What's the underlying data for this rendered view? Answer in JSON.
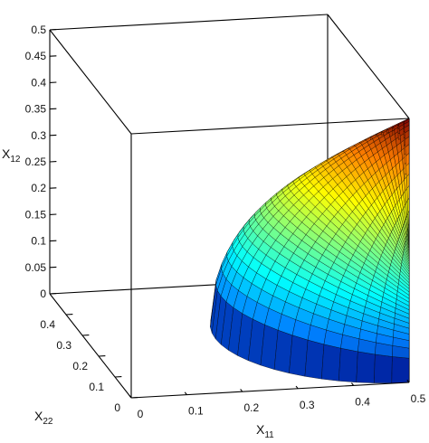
{
  "chart_data": {
    "type": "surface3d",
    "title": "",
    "axes": {
      "x": {
        "label": "X",
        "label_sub": "11",
        "ticks": [
          "0",
          "0.1",
          "0.2",
          "0.3",
          "0.4",
          "0.5"
        ],
        "range": [
          0,
          0.5
        ]
      },
      "y": {
        "label": "X",
        "label_sub": "22",
        "ticks": [
          "0",
          "0.1",
          "0.2",
          "0.3",
          "0.4"
        ],
        "range": [
          0,
          0.5
        ]
      },
      "z": {
        "label": "X",
        "label_sub": "12",
        "ticks": [
          "0",
          "0.05",
          "0.1",
          "0.15",
          "0.2",
          "0.25",
          "0.3",
          "0.35",
          "0.4",
          "0.45",
          "0.5"
        ],
        "range": [
          0,
          0.5
        ]
      }
    },
    "surface": {
      "description_points": [
        {
          "x11": 0.5,
          "x22": 0.0,
          "x12": 0.5
        },
        {
          "x11": 0.5,
          "x22": 0.5,
          "x12": 0.0
        },
        {
          "x11": 0.0,
          "x22": 0.5,
          "x12": 0.5
        }
      ],
      "colormap": [
        "#00007f",
        "#0080ff",
        "#00ffff",
        "#80ff80",
        "#ffff00",
        "#ff8000",
        "#7f0000"
      ],
      "edge_color": "#000000"
    },
    "grid": false,
    "box": true
  }
}
